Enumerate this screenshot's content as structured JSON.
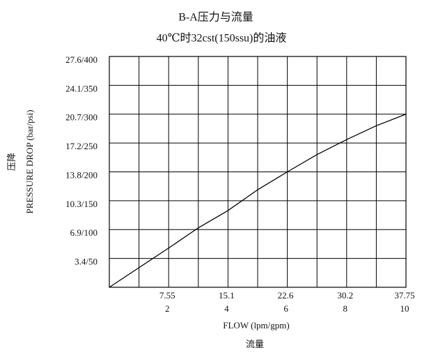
{
  "chart_data": {
    "type": "line",
    "title": "B-A压力与流量",
    "subtitle": "40℃时32cst(150ssu)的油液",
    "x_label": "FLOW (lpm/gpm)",
    "x_label_cn": "流量",
    "y_label": "PRESSURE DROP (bar/psi)",
    "y_label_cn": "压降",
    "xlim": [
      0,
      10
    ],
    "xticks": [
      2,
      4,
      6,
      8,
      10
    ],
    "xminorticks": [
      1,
      3,
      5,
      7,
      9
    ],
    "x2lim": [
      0,
      37.75
    ],
    "x2ticks": [
      7.55,
      15.1,
      22.6,
      30.2,
      37.75
    ],
    "ylim": [
      0,
      400
    ],
    "yticks": [
      {
        "value": 50,
        "label": "3.4/50"
      },
      {
        "value": 100,
        "label": "6.9/100"
      },
      {
        "value": 150,
        "label": "10.3/150"
      },
      {
        "value": 200,
        "label": "13.8/200"
      },
      {
        "value": 250,
        "label": "17.2/250"
      },
      {
        "value": 300,
        "label": "20.7/300"
      },
      {
        "value": 350,
        "label": "24.1/350"
      },
      {
        "value": 400,
        "label": "27.6/400"
      }
    ],
    "grid": true,
    "x": [
      0,
      1,
      2,
      3,
      4,
      5,
      6,
      7,
      8,
      9,
      10
    ],
    "series": [
      {
        "color": "#000000",
        "values": [
          0,
          34,
          68,
          103,
          133,
          169,
          200,
          230,
          256,
          280,
          300
        ]
      }
    ]
  }
}
